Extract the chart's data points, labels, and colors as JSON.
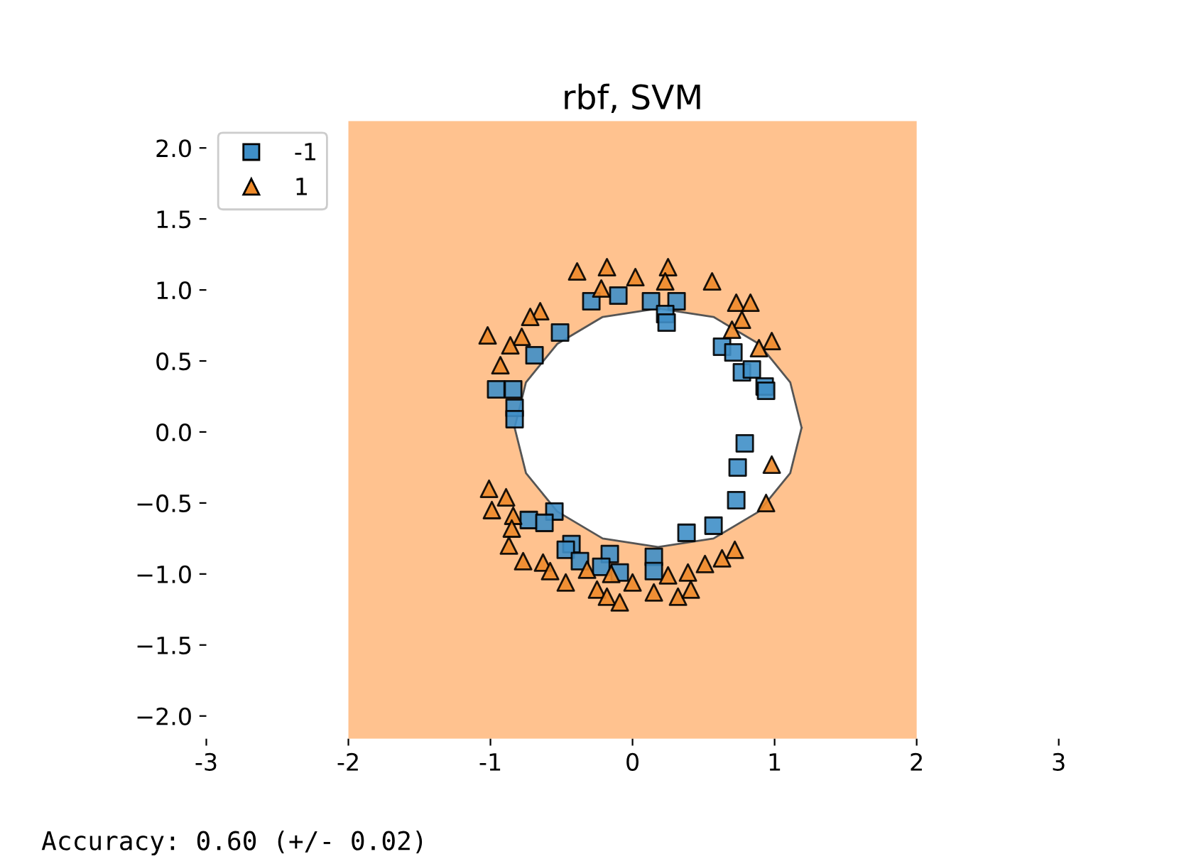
{
  "chart_data": {
    "type": "scatter",
    "title": "rbf, SVM",
    "xlim": [
      -3,
      3
    ],
    "ylim": [
      -2.16,
      2.19
    ],
    "xticks": [
      -3,
      -2,
      -1,
      0,
      1,
      2,
      3
    ],
    "yticks": [
      {
        "value": 2,
        "label": "2.0"
      },
      {
        "value": 1.5,
        "label": "1.5"
      },
      {
        "value": 1,
        "label": "1.0"
      },
      {
        "value": 0.5,
        "label": "0.5"
      },
      {
        "value": 0,
        "label": "0.0"
      },
      {
        "value": -0.5,
        "label": "−0.5"
      },
      {
        "value": -1,
        "label": "−1.0"
      },
      {
        "value": -1.5,
        "label": "−1.5"
      },
      {
        "value": -2,
        "label": "−2.0"
      }
    ],
    "grid": false,
    "legend": "top left",
    "bands": [
      {
        "axis": "x",
        "from": -2,
        "to": 2,
        "color": "#ffc28f"
      }
    ],
    "series": [
      {
        "type": "area",
        "color": "#555555",
        "marker": "none",
        "line_style": "solid",
        "x": [
          1.19,
          1.11,
          0.89,
          0.57,
          0.18,
          -0.21,
          -0.53,
          -0.75,
          -0.83,
          -0.75,
          -0.53,
          -0.21,
          0.18,
          0.57,
          0.89,
          1.11,
          1.19
        ],
        "values": [
          0.03,
          0.35,
          0.62,
          0.81,
          0.87,
          0.81,
          0.62,
          0.35,
          0.03,
          -0.29,
          -0.56,
          -0.75,
          -0.81,
          -0.75,
          -0.56,
          -0.29,
          0.03
        ]
      },
      {
        "name": "-1",
        "color": "#3f8fc8",
        "marker": "square",
        "x": [
          -0.29,
          -0.1,
          0.13,
          0.31,
          0.23,
          0.24,
          -0.51,
          -0.69,
          -0.96,
          -0.84,
          -0.83,
          -0.83,
          0.63,
          0.71,
          0.77,
          0.84,
          0.93,
          0.94,
          0.79,
          0.74,
          0.73,
          0.57,
          0.38,
          0.15,
          0.15,
          -0.55,
          -0.73,
          -0.62,
          -0.43,
          -0.47,
          -0.37,
          -0.16,
          -0.22,
          -0.09
        ],
        "values": [
          0.92,
          0.96,
          0.92,
          0.92,
          0.83,
          0.77,
          0.7,
          0.54,
          0.3,
          0.3,
          0.17,
          0.09,
          0.6,
          0.56,
          0.42,
          0.44,
          0.32,
          0.29,
          -0.08,
          -0.25,
          -0.48,
          -0.66,
          -0.71,
          -0.88,
          -0.98,
          -0.56,
          -0.62,
          -0.64,
          -0.79,
          -0.83,
          -0.91,
          -0.86,
          -0.95,
          -0.99
        ]
      },
      {
        "name": "1",
        "color": "#ee8a2a",
        "marker": "triangle",
        "x": [
          -0.39,
          -0.18,
          0.02,
          0.25,
          0.23,
          -0.22,
          0.56,
          0.73,
          0.83,
          0.77,
          0.7,
          0.98,
          0.89,
          -0.65,
          -0.72,
          -0.78,
          -0.86,
          -1.02,
          -0.93,
          0.98,
          0.94,
          -1.01,
          -0.89,
          -0.99,
          -0.84,
          -0.85,
          -0.87,
          -0.77,
          -0.63,
          -0.58,
          -0.47,
          -0.32,
          -0.25,
          -0.18,
          -0.15,
          -0.09,
          0.0,
          0.15,
          0.25,
          0.32,
          0.39,
          0.41,
          0.51,
          0.63,
          0.72
        ],
        "values": [
          1.13,
          1.16,
          1.09,
          1.16,
          1.06,
          1.01,
          1.06,
          0.91,
          0.91,
          0.79,
          0.72,
          0.64,
          0.59,
          0.85,
          0.81,
          0.67,
          0.61,
          0.68,
          0.47,
          -0.23,
          -0.5,
          -0.4,
          -0.46,
          -0.55,
          -0.59,
          -0.68,
          -0.8,
          -0.91,
          -0.92,
          -0.98,
          -1.06,
          -0.97,
          -1.11,
          -1.16,
          -1.0,
          -1.2,
          -1.06,
          -1.13,
          -1.01,
          -1.16,
          -0.99,
          -1.11,
          -0.93,
          -0.89,
          -0.83
        ]
      }
    ],
    "annotations": [
      "Accuracy: 0.60 (+/- 0.02)"
    ]
  }
}
